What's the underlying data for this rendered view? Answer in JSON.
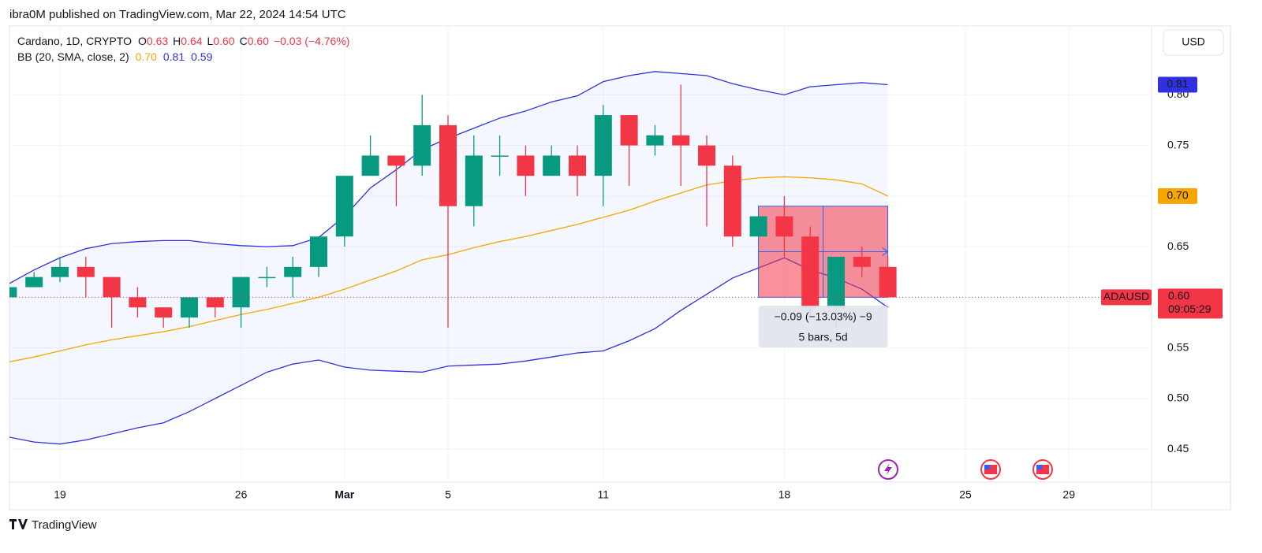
{
  "header": {
    "published": "ibra0M published on TradingView.com, Mar 22, 2024 14:54 UTC"
  },
  "legend": {
    "symbol": "Cardano, 1D, CRYPTO",
    "o": "O",
    "open": "0.63",
    "h": "H",
    "high": "0.64",
    "l": "L",
    "low": "0.60",
    "c": "C",
    "close": "0.60",
    "change": "−0.03 (−4.76%)",
    "bb": "BB (20, SMA, close, 2)",
    "bb_basis": "0.70",
    "bb_upper": "0.81",
    "bb_lower": "0.59"
  },
  "currency": "USD",
  "footer": {
    "brand": "TradingView"
  },
  "chart_data": {
    "type": "candlestick",
    "categories": [
      null,
      null,
      "19",
      null,
      null,
      null,
      null,
      null,
      null,
      "26",
      null,
      null,
      null,
      "Mar",
      null,
      null,
      null,
      "5",
      null,
      null,
      null,
      null,
      null,
      "11",
      null,
      null,
      null,
      null,
      null,
      null,
      "18",
      null,
      null,
      null,
      null,
      null,
      null,
      "25",
      null,
      null,
      null,
      "29",
      null,
      null
    ],
    "open": [
      0.6,
      0.61,
      0.62,
      0.63,
      0.62,
      0.6,
      0.59,
      0.58,
      0.6,
      0.59,
      0.62,
      0.62,
      0.63,
      0.66,
      0.72,
      0.74,
      0.73,
      0.77,
      0.69,
      0.74,
      0.74,
      0.72,
      0.74,
      0.72,
      0.78,
      0.75,
      0.76,
      0.75,
      0.73,
      0.66,
      0.68,
      0.66,
      0.59,
      0.64,
      0.63,
      null,
      null,
      null,
      null,
      null,
      null,
      null,
      null,
      null
    ],
    "high": [
      0.61,
      0.625,
      0.64,
      0.64,
      0.62,
      0.61,
      0.59,
      0.6,
      0.6,
      0.62,
      0.63,
      0.64,
      0.66,
      0.72,
      0.76,
      0.74,
      0.8,
      0.78,
      0.76,
      0.76,
      0.75,
      0.75,
      0.75,
      0.79,
      0.78,
      0.77,
      0.81,
      0.76,
      0.74,
      0.68,
      0.7,
      0.67,
      0.64,
      0.65,
      0.64,
      null,
      null,
      null,
      null,
      null,
      null,
      null,
      null,
      null
    ],
    "low": [
      0.57,
      0.61,
      0.615,
      0.6,
      0.57,
      0.58,
      0.57,
      0.57,
      0.58,
      0.57,
      0.61,
      0.6,
      0.62,
      0.65,
      0.72,
      0.69,
      0.72,
      0.57,
      0.67,
      0.72,
      0.7,
      0.72,
      0.7,
      0.69,
      0.71,
      0.74,
      0.71,
      0.67,
      0.65,
      0.66,
      0.64,
      0.58,
      0.57,
      0.62,
      0.6,
      null,
      null,
      null,
      null,
      null,
      null,
      null,
      null,
      null
    ],
    "close": [
      0.61,
      0.62,
      0.63,
      0.62,
      0.6,
      0.59,
      0.58,
      0.6,
      0.59,
      0.62,
      0.62,
      0.63,
      0.66,
      0.72,
      0.74,
      0.73,
      0.77,
      0.69,
      0.74,
      0.74,
      0.72,
      0.74,
      0.72,
      0.78,
      0.75,
      0.76,
      0.75,
      0.73,
      0.66,
      0.68,
      0.66,
      0.59,
      0.64,
      0.63,
      0.6,
      null,
      null,
      null,
      null,
      null,
      null,
      null,
      null,
      null
    ],
    "up_color": "#089981",
    "down_color": "#f23645",
    "series": [
      {
        "color": "#3030e0",
        "label_text_color": "#ffffff",
        "last_label": "0.81",
        "values": [
          0.613,
          0.627,
          0.639,
          0.648,
          0.653,
          0.655,
          0.656,
          0.656,
          0.653,
          0.651,
          0.65,
          0.651,
          0.659,
          0.68,
          0.708,
          0.726,
          0.746,
          0.757,
          0.767,
          0.777,
          0.784,
          0.793,
          0.799,
          0.813,
          0.819,
          0.823,
          0.821,
          0.819,
          0.811,
          0.805,
          0.8,
          0.808,
          0.81,
          0.812,
          0.81,
          null,
          null,
          null,
          null,
          null,
          null,
          null,
          null,
          null
        ]
      },
      {
        "color": "#f7a600",
        "label_text_color": "#131722",
        "last_label": "0.70",
        "values": [
          0.536,
          0.541,
          0.547,
          0.553,
          0.558,
          0.562,
          0.566,
          0.571,
          0.577,
          0.583,
          0.588,
          0.594,
          0.6,
          0.608,
          0.617,
          0.626,
          0.637,
          0.642,
          0.649,
          0.655,
          0.66,
          0.666,
          0.672,
          0.679,
          0.686,
          0.695,
          0.703,
          0.711,
          0.715,
          0.718,
          0.719,
          0.718,
          0.716,
          0.712,
          0.7,
          null,
          null,
          null,
          null,
          null,
          null,
          null,
          null,
          null
        ]
      },
      {
        "color": "#3030e0",
        "label_text_color": "#ffffff",
        "last_label": "0.59",
        "values": [
          0.462,
          0.457,
          0.455,
          0.459,
          0.465,
          0.471,
          0.476,
          0.487,
          0.5,
          0.513,
          0.526,
          0.534,
          0.538,
          0.531,
          0.528,
          0.527,
          0.526,
          0.532,
          0.533,
          0.534,
          0.537,
          0.541,
          0.545,
          0.547,
          0.557,
          0.569,
          0.587,
          0.603,
          0.619,
          0.629,
          0.639,
          0.627,
          0.619,
          0.608,
          0.59,
          null,
          null,
          null,
          null,
          null,
          null,
          null,
          null,
          null
        ]
      }
    ],
    "ylim": [
      0.4174,
      0.868
    ],
    "yticks": [
      0.45,
      {
        "value": 0.5,
        "label": "0.50"
      },
      0.55,
      {
        "value": 0.6,
        "label": "0.60"
      },
      0.65,
      {
        "value": 0.7,
        "label": "0.70"
      },
      0.75,
      {
        "value": 0.8,
        "label": "0.80"
      }
    ],
    "grid": true,
    "price_tag": {
      "symbol": "ADAUSD",
      "label": "0.60",
      "countdown": "09:05:29"
    },
    "measure": {
      "from": 0.69,
      "to": 0.6,
      "line1": "−0.09 (−13.03%) −9",
      "line2": "5 bars, 5d"
    }
  }
}
